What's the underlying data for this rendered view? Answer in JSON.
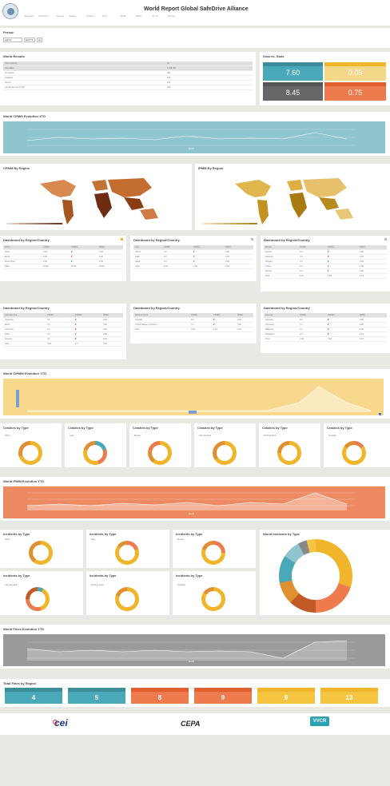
{
  "header": {
    "title": "World Report Global SafeDrive Alliance",
    "nav": [
      "Dashboard",
      "World Fleet",
      "Journeys",
      "Crashes",
      "Incidents",
      "Fines",
      "CPMM",
      "IPMM",
      "Top 10",
      "Settings"
    ]
  },
  "period": {
    "label": "Period:",
    "month": "April",
    "year": "2017",
    "go": "ok"
  },
  "world_results": {
    "title": "World Results",
    "rows": [
      [
        "Total Crashes",
        "49"
      ],
      [
        "Total Miles",
        "6,429,682"
      ],
      [
        "All Injuries",
        "285"
      ],
      [
        "Fatalities",
        "193"
      ],
      [
        "Severe",
        "195"
      ],
      [
        "Comprehensive (YTD)",
        "195"
      ]
    ]
  },
  "goal": {
    "title": "Goal vs. Stats",
    "tiles": [
      {
        "value": "7.60",
        "color": "#4aa9b8"
      },
      {
        "value": "0.05",
        "color": "#f5c542"
      },
      {
        "value": "8.45",
        "color": "#666666"
      },
      {
        "value": "0.75",
        "color": "#ee7b4e"
      }
    ]
  },
  "cpmm_ytd": {
    "title": "World CPMM Evolution YTD",
    "xlabel": "Month"
  },
  "cpmm_region": {
    "title": "CPMM By Region",
    "scale": [
      "0",
      "10"
    ]
  },
  "ipmm_region": {
    "title": "IPMM By Region",
    "scale": [
      "0",
      "10"
    ]
  },
  "dash_title": "Dashboard by Region/Country",
  "dash_cols": [
    "CPMM",
    "CIPMM",
    "IPMM"
  ],
  "dashboards_row1": [
    {
      "region": "Africa",
      "rows": [
        [
          "Africa",
          "0.00",
          "",
          "0.00"
        ],
        [
          "South",
          "0.00",
          "",
          "0.00"
        ],
        [
          "West Africa",
          "0.00",
          "",
          "0.00"
        ]
      ],
      "total": [
        "Total",
        "16.50",
        "15.96",
        "24.00"
      ]
    },
    {
      "region": "Asia",
      "rows": [
        [
          "China",
          "0.0",
          "",
          "0.00"
        ],
        [
          "India",
          "0.0",
          "",
          "0.00"
        ],
        [
          "Japan",
          "0.0",
          "",
          "0.00"
        ]
      ],
      "total": [
        "Total",
        "8.44",
        "2.65",
        "3.92"
      ]
    },
    {
      "region": "Europe",
      "rows": [
        [
          "France",
          "0.0",
          "",
          "0.00"
        ],
        [
          "Germany",
          "0.0",
          "",
          "0.00"
        ],
        [
          "Hungary",
          "0.0",
          "",
          "0.00"
        ],
        [
          "Turkey",
          "0.0",
          "",
          "0.00"
        ],
        [
          "Russia",
          "0.0",
          "",
          "0.00"
        ]
      ],
      "total": [
        "Total",
        "6.16",
        "1.58",
        "5.04"
      ]
    }
  ],
  "dashboards_row2": [
    {
      "region": "Latin America",
      "rows": [
        [
          "Argentina",
          "0.0",
          "",
          "0.00"
        ],
        [
          "Brazil",
          "0.0",
          "",
          "0.00"
        ],
        [
          "Colombia",
          "0.0",
          "",
          "0.00"
        ],
        [
          "Chile",
          "0.0",
          "",
          "0.00"
        ],
        [
          "Ecuador",
          "0.0",
          "",
          "0.00"
        ]
      ],
      "total": [
        "Total",
        "9.09",
        "2.4",
        "3.87"
      ]
    },
    {
      "region": "North America",
      "rows": [
        [
          "Canada",
          "0.0",
          "",
          "0.00"
        ],
        [
          "United States of America",
          "0.0",
          "",
          "0.00"
        ]
      ],
      "total": [
        "Total",
        "3.00",
        "1.23",
        "6.00"
      ]
    },
    {
      "region": "Oceania",
      "rows": [
        [
          "Australia",
          "0.0",
          "",
          "0.00"
        ],
        [
          "Indonesia",
          "0.0",
          "",
          "0.00"
        ],
        [
          "Malaysia",
          "0.0",
          "",
          "0.00"
        ],
        [
          "Singapore",
          "0.0",
          "",
          "0.00"
        ]
      ],
      "total": [
        "Total",
        "2.46",
        "0.60",
        "6.33"
      ]
    }
  ],
  "cipmm_ytd": {
    "title": "World CIPMM Evolution YTD"
  },
  "crashes_type": {
    "title": "Crashes by Type",
    "regions": [
      "Africa",
      "Asia",
      "Europe",
      "Latin America",
      "North America",
      "Oceania"
    ]
  },
  "ipmm_ytd": {
    "title": "World IPMM Evolution YTD",
    "xlabel": "Month"
  },
  "incidents_type": {
    "title": "Incidents by Type",
    "regions": [
      "Africa",
      "Asia",
      "Europe",
      "Latin America",
      "North America",
      "Oceania"
    ]
  },
  "world_incidents": {
    "title": "World Incidents by Type"
  },
  "fines_ytd": {
    "title": "World Fines Evolution YTD",
    "xlabel": "Month"
  },
  "fines_region": {
    "title": "Total Fines by Region",
    "tiles": [
      {
        "value": "4",
        "color": "#4aa9b8"
      },
      {
        "value": "5",
        "color": "#4aa9b8"
      },
      {
        "value": "8",
        "color": "#ee7b4e"
      },
      {
        "value": "9",
        "color": "#ee7b4e"
      },
      {
        "value": "9",
        "color": "#f5c542"
      },
      {
        "value": "13",
        "color": "#f5c542"
      }
    ]
  },
  "footer": {
    "logos": [
      "cei",
      "CEPA",
      "VVCR"
    ]
  }
}
